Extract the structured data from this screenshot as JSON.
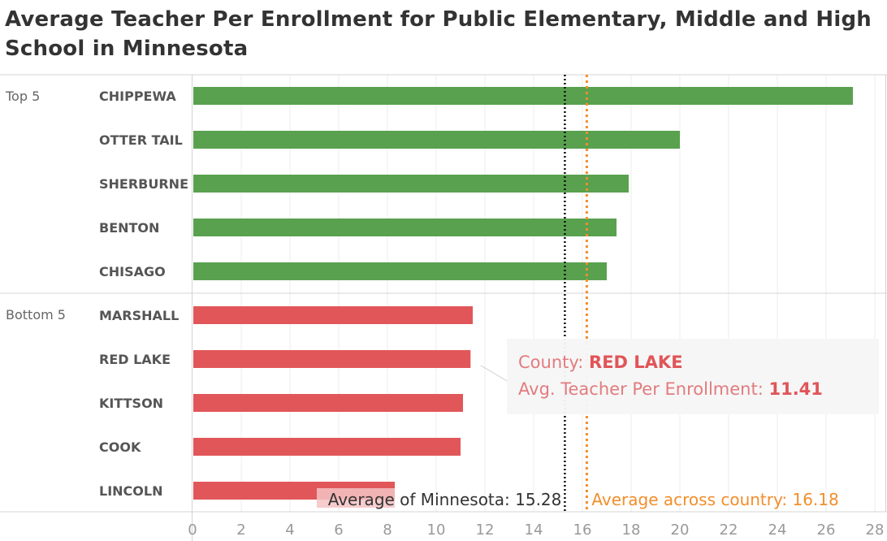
{
  "title": "Average Teacher Per Enrollment for Public Elementary, Middle and High School in Minnesota",
  "tooltip": {
    "county_label": "County:",
    "county_value": "RED LAKE",
    "metric_label": "Avg. Teacher Per Enrollment:",
    "metric_value": "11.41"
  },
  "chart_data": {
    "type": "bar",
    "orientation": "horizontal",
    "groups": [
      {
        "name": "Top 5",
        "color": "#59a14f",
        "categories": [
          "CHIPPEWA",
          "OTTER TAIL",
          "SHERBURNE",
          "BENTON",
          "CHISAGO"
        ],
        "values": [
          27.1,
          20.0,
          17.9,
          17.4,
          17.0
        ]
      },
      {
        "name": "Bottom 5",
        "color": "#e15759",
        "categories": [
          "MARSHALL",
          "RED LAKE",
          "KITTSON",
          "COOK",
          "LINCOLN"
        ],
        "values": [
          11.5,
          11.41,
          11.1,
          11.0,
          8.3
        ]
      }
    ],
    "xlim": [
      0,
      28
    ],
    "xticks": [
      0,
      2,
      4,
      6,
      8,
      10,
      12,
      14,
      16,
      18,
      20,
      22,
      24,
      26,
      28
    ],
    "grid": true,
    "reference_lines": [
      {
        "label": "Average of Minnesota:",
        "value": 15.28,
        "value_text": "15.28",
        "color": "#111111"
      },
      {
        "label": "Average across country:",
        "value": 16.18,
        "value_text": "16.18",
        "color": "#f28e2b"
      }
    ]
  }
}
